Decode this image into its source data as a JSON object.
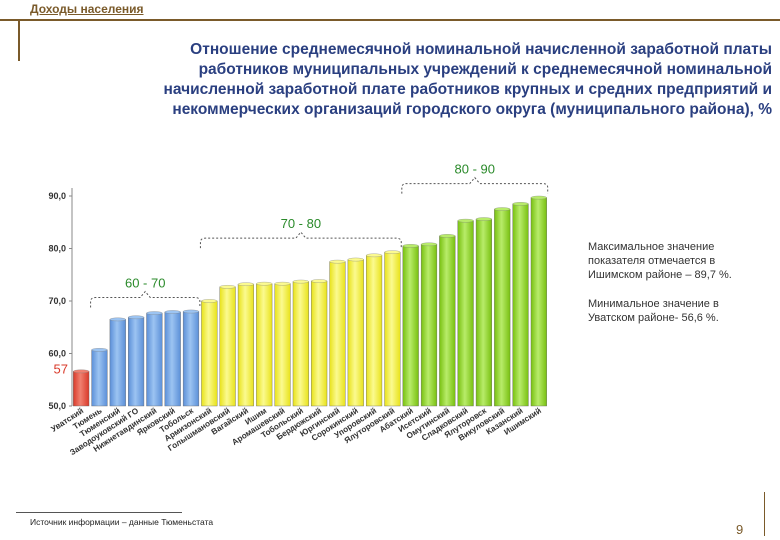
{
  "header": {
    "section_label": "Доходы населения"
  },
  "title": "Отношение среднемесячной номинальной начисленной заработной платы работников муниципальных учреждений к среднемесячной номинальной начисленной заработной плате работников крупных и средних предприятий и некоммерческих организаций городского округа (муниципального района), %",
  "notes": {
    "max": "Максимальное значение показателя отмечается в Ишимском районе – 89,7 %.",
    "min": "Минимальное значение в Уватском районе- 56,6 %."
  },
  "source": "Источник информации – данные Тюменьстата",
  "page_number": "9",
  "colors": {
    "red": "#d93a2a",
    "blue": "#5b8fd8",
    "yellow": "#e8e21a",
    "green": "#78c010",
    "range_label": "#2a8a2a",
    "title": "#2a3f80"
  },
  "chart_data": {
    "type": "bar",
    "ylim": [
      50,
      90
    ],
    "yticks": [
      "50,0",
      "60,0",
      "70,0",
      "80,0",
      "90,0"
    ],
    "yticks_values": [
      50,
      60,
      70,
      80,
      90
    ],
    "grid": false,
    "categories": [
      "Уватский",
      "Тюмень",
      "Тюменский",
      "Заводоуковский ГО",
      "Нижнетавдинский",
      "Ярковский",
      "Тобольск",
      "Армизонский",
      "Голышмановский",
      "Вагайский",
      "Ишим",
      "Аромашевский",
      "Тобольский",
      "Бердюжский",
      "Юргинский",
      "Сорокинский",
      "Упоровский",
      "Ялуторовский",
      "Абатский",
      "Исетский",
      "Омутинский",
      "Сладковский",
      "Ялуторовск",
      "Викуловский",
      "Казанский",
      "Ишимский"
    ],
    "values": [
      56.6,
      60.7,
      66.5,
      66.9,
      67.7,
      67.9,
      68.0,
      70.0,
      72.7,
      73.2,
      73.3,
      73.3,
      73.7,
      73.8,
      77.5,
      77.9,
      78.7,
      79.3,
      80.5,
      80.8,
      82.4,
      85.3,
      85.6,
      87.5,
      88.5,
      89.7
    ],
    "bar_colors": [
      "red",
      "blue",
      "blue",
      "blue",
      "blue",
      "blue",
      "blue",
      "yellow",
      "yellow",
      "yellow",
      "yellow",
      "yellow",
      "yellow",
      "yellow",
      "yellow",
      "yellow",
      "yellow",
      "yellow",
      "green",
      "green",
      "green",
      "green",
      "green",
      "green",
      "green",
      "green"
    ],
    "annotations": [
      {
        "text": "57",
        "bar": 0
      },
      {
        "text": "60 - 70",
        "from": 1,
        "to": 6
      },
      {
        "text": "70 - 80",
        "from": 7,
        "to": 17
      },
      {
        "text": "80 - 90",
        "from": 18,
        "to": 25
      }
    ]
  }
}
